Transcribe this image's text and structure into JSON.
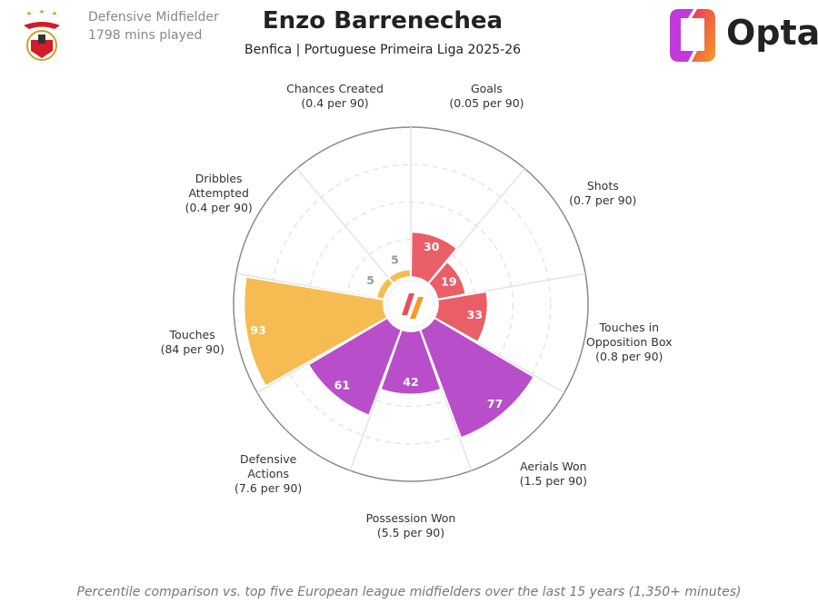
{
  "header": {
    "position": "Defensive Midfielder",
    "minutes": "1798 mins played",
    "brand": "Opta"
  },
  "chart_data": {
    "type": "polar-bar",
    "title": "Enzo Barrenechea",
    "subtitle": "Benfica | Portuguese Primeira Liga 2025-26",
    "categories": [
      "Goals",
      "Shots",
      "Touches in Opposition Box",
      "Aerials Won",
      "Possession Won",
      "Defensive Actions",
      "Touches",
      "Dribbles Attempted",
      "Chances Created"
    ],
    "per90_labels": [
      "(0.05 per 90)",
      "(0.7 per 90)",
      "(0.8 per 90)",
      "(1.5 per 90)",
      "(5.5 per 90)",
      "(7.6 per 90)",
      "(84 per 90)",
      "(0.4 per 90)",
      "(0.4 per 90)"
    ],
    "values": [
      30,
      19,
      33,
      77,
      42,
      61,
      93,
      5,
      5
    ],
    "colors": [
      "#e8505b",
      "#e8505b",
      "#e8505b",
      "#b33fc6",
      "#b33fc6",
      "#b33fc6",
      "#f5b642",
      "#f5b642",
      "#f5b642"
    ],
    "rlim": [
      0,
      100
    ],
    "rticks": [
      25,
      50,
      75
    ],
    "grid": true,
    "note": "Percentile comparison vs. top five European league midfielders over the last 15 years (1,350+ minutes)"
  }
}
